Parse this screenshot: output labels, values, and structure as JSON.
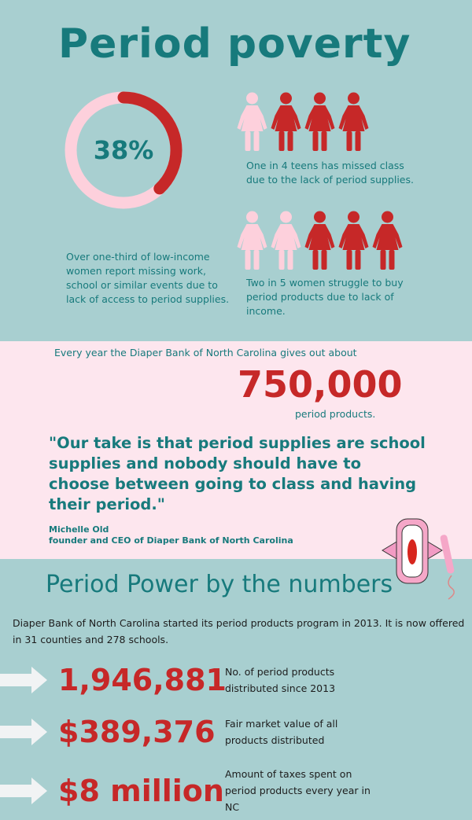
{
  "title": "Period poverty",
  "donut": {
    "value": 38,
    "label": "38%",
    "color": "#c62828",
    "track": "#fdd0dc"
  },
  "donut_caption": "Over one-third of low-income women report missing work, school or similar events due to lack of access to period supplies.",
  "teens": {
    "total": 4,
    "highlighted": 3,
    "caption": "One in 4 teens has missed class due to the lack of period supplies."
  },
  "women": {
    "total": 5,
    "highlighted": 3,
    "caption": "Two in 5 women struggle to buy period products due to lack of income."
  },
  "diaper_bank": {
    "intro": "Every year the Diaper Bank of North Carolina gives out about",
    "number": "750,000",
    "unit": "period products.",
    "quote": "\"Our take is that period supplies are school supplies and nobody should have to choose between going to class and having their period.\"",
    "author": "Michelle Old",
    "author_title": "founder and CEO of Diaper Bank of North Carolina"
  },
  "numbers": {
    "heading": "Period Power by the numbers",
    "intro": "Diaper Bank of North Carolina started its period products program in 2013. It is now offered in 31 counties and 278 schools.",
    "stats": [
      {
        "value": "1,946,881",
        "desc": "No. of period products distributed since 2013"
      },
      {
        "value": "$389,376",
        "desc": "Fair market value of all products distributed"
      },
      {
        "value": "$8 million",
        "desc": "Amount of taxes spent on period products every year in NC"
      }
    ]
  },
  "colors": {
    "background": "#a8cfd0",
    "teal": "#177a7c",
    "red": "#c62828",
    "pink": "#fde6ee",
    "light_pink": "#fdd0dc"
  }
}
